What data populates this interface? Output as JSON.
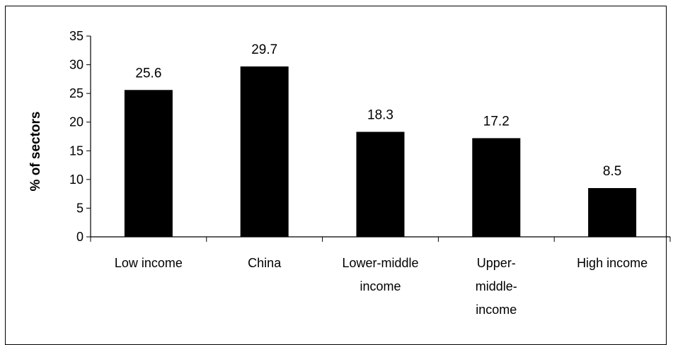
{
  "chart_data": {
    "type": "bar",
    "title": "",
    "xlabel": "",
    "ylabel": "% of sectors",
    "categories": [
      [
        "Low income"
      ],
      [
        "China"
      ],
      [
        "Lower-middle",
        "income"
      ],
      [
        "Upper-",
        "middle-",
        "income"
      ],
      [
        "High income"
      ]
    ],
    "values": [
      25.6,
      29.7,
      18.3,
      17.2,
      8.5
    ],
    "value_labels": [
      "25.6",
      "29.7",
      "18.3",
      "17.2",
      "8.5"
    ],
    "ylim": [
      0,
      35
    ],
    "yticks": [
      0,
      5,
      10,
      15,
      20,
      25,
      30,
      35
    ],
    "grid": false,
    "legend": "none",
    "bar_color": "#000000",
    "axis_color": "#000000"
  }
}
